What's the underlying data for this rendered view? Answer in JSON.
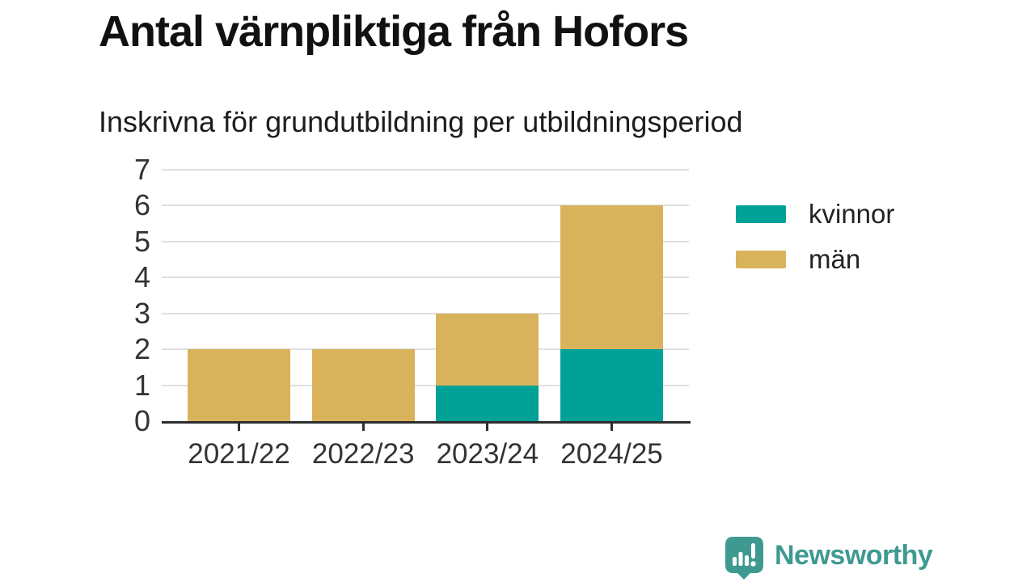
{
  "header": {
    "title": "Antal värnpliktiga från Hofors",
    "subtitle": "Inskrivna för grundutbildning per utbildningsperiod"
  },
  "chart_data": {
    "type": "bar",
    "stacked": true,
    "title": "Antal värnpliktiga från Hofors",
    "subtitle": "Inskrivna för grundutbildning per utbildningsperiod",
    "categories": [
      "2021/22",
      "2022/23",
      "2023/24",
      "2024/25"
    ],
    "series": [
      {
        "name": "kvinnor",
        "color": "#00a196",
        "values": [
          0,
          0,
          1,
          2
        ]
      },
      {
        "name": "män",
        "color": "#d9b25c",
        "values": [
          2,
          2,
          2,
          4
        ]
      }
    ],
    "xlabel": "",
    "ylabel": "",
    "ylim": [
      0,
      7
    ],
    "yticks": [
      0,
      1,
      2,
      3,
      4,
      5,
      6,
      7
    ],
    "grid": true,
    "gridline_color": "#e0e0e0",
    "axis_color": "#2d2d2d",
    "legend_position": "right"
  },
  "colors": {
    "kvinnor": "#00a196",
    "man": "#d9b25c",
    "brand": "#3e9a91"
  },
  "icons": {
    "brand_logo": "speech-bubble-bar-chart-exclamation-icon"
  },
  "footer": {
    "brand": "Newsworthy"
  }
}
